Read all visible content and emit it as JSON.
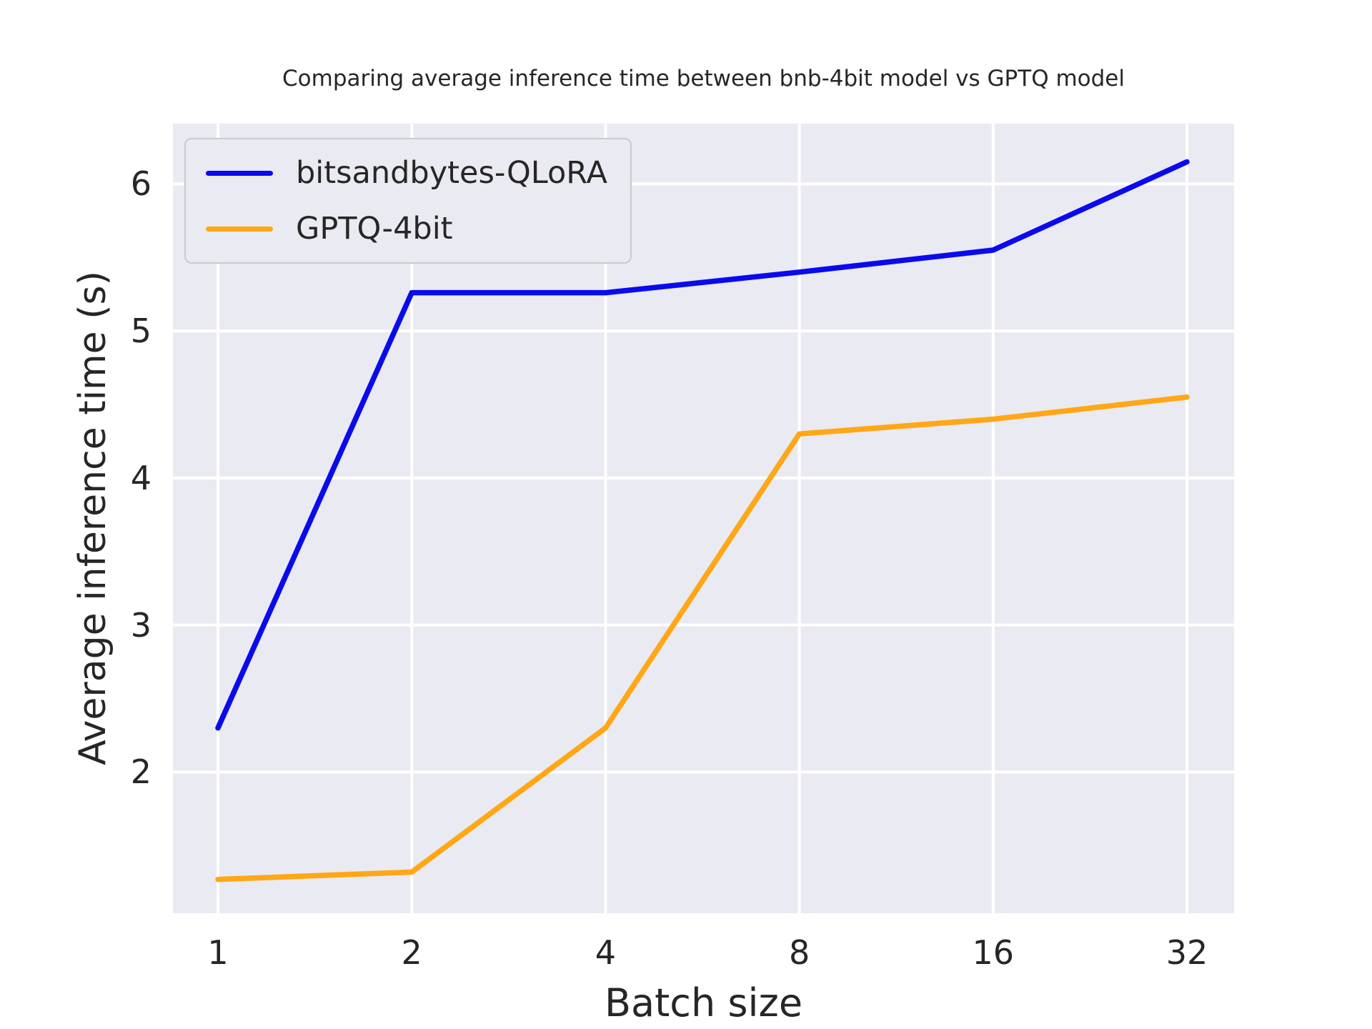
{
  "chart_data": {
    "type": "line",
    "title": "Comparing average inference time between bnb-4bit model vs GPTQ model",
    "xlabel": "Batch size",
    "ylabel": "Average inference time (s)",
    "x_scale": "log2-categorical",
    "categories": [
      "1",
      "2",
      "4",
      "8",
      "16",
      "32"
    ],
    "y_ticks": [
      2,
      3,
      4,
      5,
      6
    ],
    "ylim": [
      1.04,
      6.41
    ],
    "grid": true,
    "legend_position": "upper left",
    "series": [
      {
        "name": "bitsandbytes-QLoRA",
        "color": "#0a0aee",
        "values": [
          2.3,
          5.26,
          5.26,
          5.4,
          5.55,
          6.15
        ]
      },
      {
        "name": "GPTQ-4bit",
        "color": "#ffa715",
        "values": [
          1.27,
          1.32,
          2.3,
          4.3,
          4.4,
          4.55
        ]
      }
    ],
    "style": {
      "plot_background": "#eaeaf2",
      "grid_color": "#ffffff",
      "text_color": "#262626",
      "line_width": 7.5
    }
  }
}
